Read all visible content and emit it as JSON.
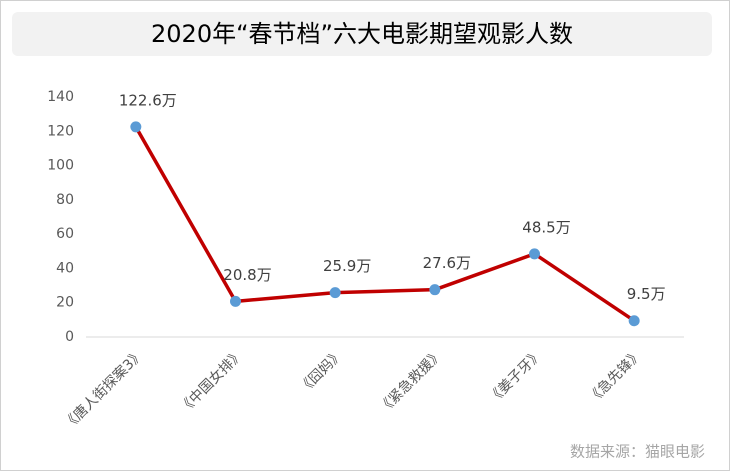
{
  "chart_data": {
    "type": "line",
    "title": "2020年“春节档”六大电影期望观影人数",
    "categories": [
      "《唐人街探案3》",
      "《中国女排》",
      "《囧妈》",
      "《紧急救援》",
      "《姜子牙》",
      "《急先锋》"
    ],
    "series": [
      {
        "name": "期望观影人数",
        "color": "#c00000",
        "marker_color": "#5b9bd5",
        "values": [
          122.6,
          20.8,
          25.9,
          27.6,
          48.5,
          9.5
        ],
        "value_labels": [
          "122.6万",
          "20.8万",
          "25.9万",
          "27.6万",
          "48.5万",
          "9.5万"
        ]
      }
    ],
    "ylim": [
      0,
      140
    ],
    "yticks": [
      0,
      20,
      40,
      60,
      80,
      100,
      120,
      140
    ],
    "grid": false,
    "source": "数据来源：猫眼电影"
  }
}
